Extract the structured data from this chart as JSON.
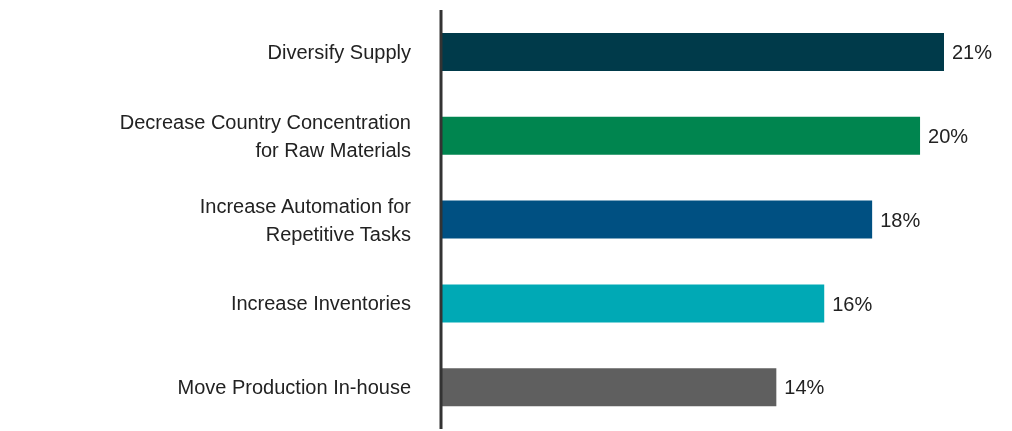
{
  "chart_data": {
    "type": "bar",
    "orientation": "horizontal",
    "categories": [
      "Diversify Supply",
      "Decrease Country Concentration for Raw Materials",
      "Increase Automation for Repetitive Tasks",
      "Increase Inventories",
      "Move Production In-house"
    ],
    "values": [
      21,
      20,
      18,
      16,
      14
    ],
    "colors": [
      "#003a4a",
      "#00854f",
      "#005082",
      "#00a9b5",
      "#5f5f5f"
    ],
    "value_labels": [
      "21%",
      "20%",
      "18%",
      "16%",
      "14%"
    ],
    "tick_labels": "y"
  }
}
